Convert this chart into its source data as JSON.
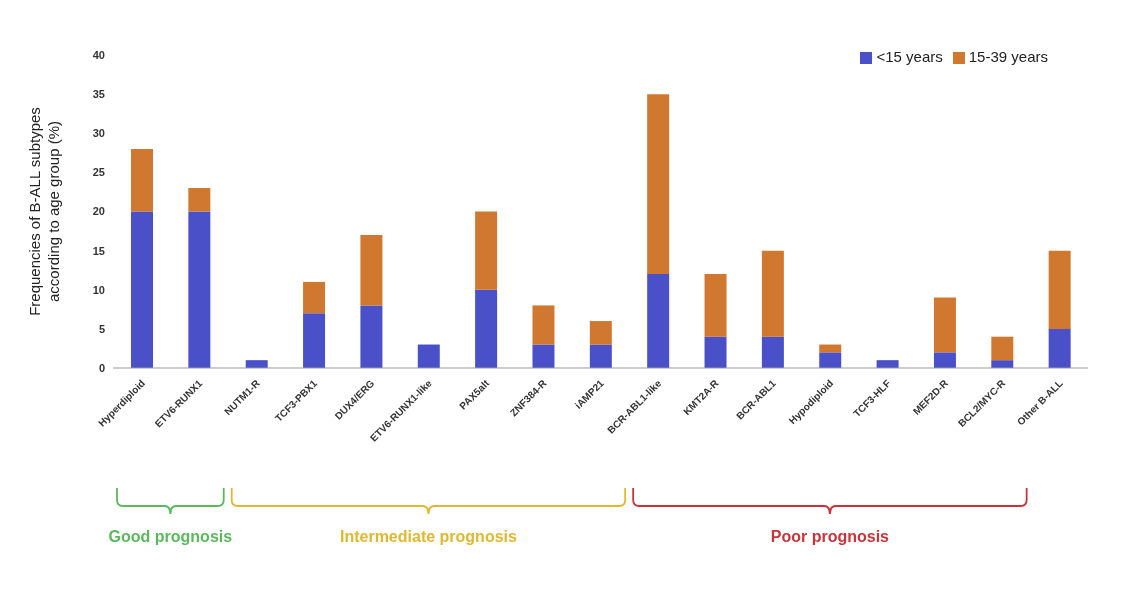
{
  "chart_data": {
    "type": "bar",
    "stacked": true,
    "ylabel": "Frequencies of B-ALL subtypes according to age group (%)",
    "categories": [
      "Hyperdiploid",
      "ETV6-RUNX1",
      "NUTM1-R",
      "TCF3-PBX1",
      "DUX4/ERG",
      "ETV6-RUNX1-like",
      "PAX5alt",
      "ZNF384-R",
      "iAMP21",
      "BCR-ABL1-like",
      "KMT2A-R",
      "BCR-ABL1",
      "Hypodiploid",
      "TCF3-HLF",
      "MEF2D-R",
      "BCL2/MYC-R",
      "Other B-ALL"
    ],
    "series": [
      {
        "name": "<15 years",
        "color": "#4a50c8",
        "values": [
          20,
          20,
          1,
          7,
          8,
          3,
          10,
          3,
          3,
          12,
          4,
          4,
          2,
          1,
          2,
          1,
          5
        ]
      },
      {
        "name": "15-39 years",
        "color": "#d0782f",
        "values": [
          8,
          3,
          null,
          4,
          9,
          null,
          10,
          5,
          3,
          23,
          8,
          11,
          1,
          null,
          7,
          3,
          10
        ]
      }
    ],
    "ylim": [
      0,
      40
    ],
    "yticks": [
      0,
      5,
      10,
      15,
      20,
      25,
      30,
      35,
      40
    ],
    "grid": false,
    "legend": "top right",
    "annotations": [
      "Good prognosis",
      "Intermediate prognosis",
      "Poor prognosis"
    ]
  }
}
